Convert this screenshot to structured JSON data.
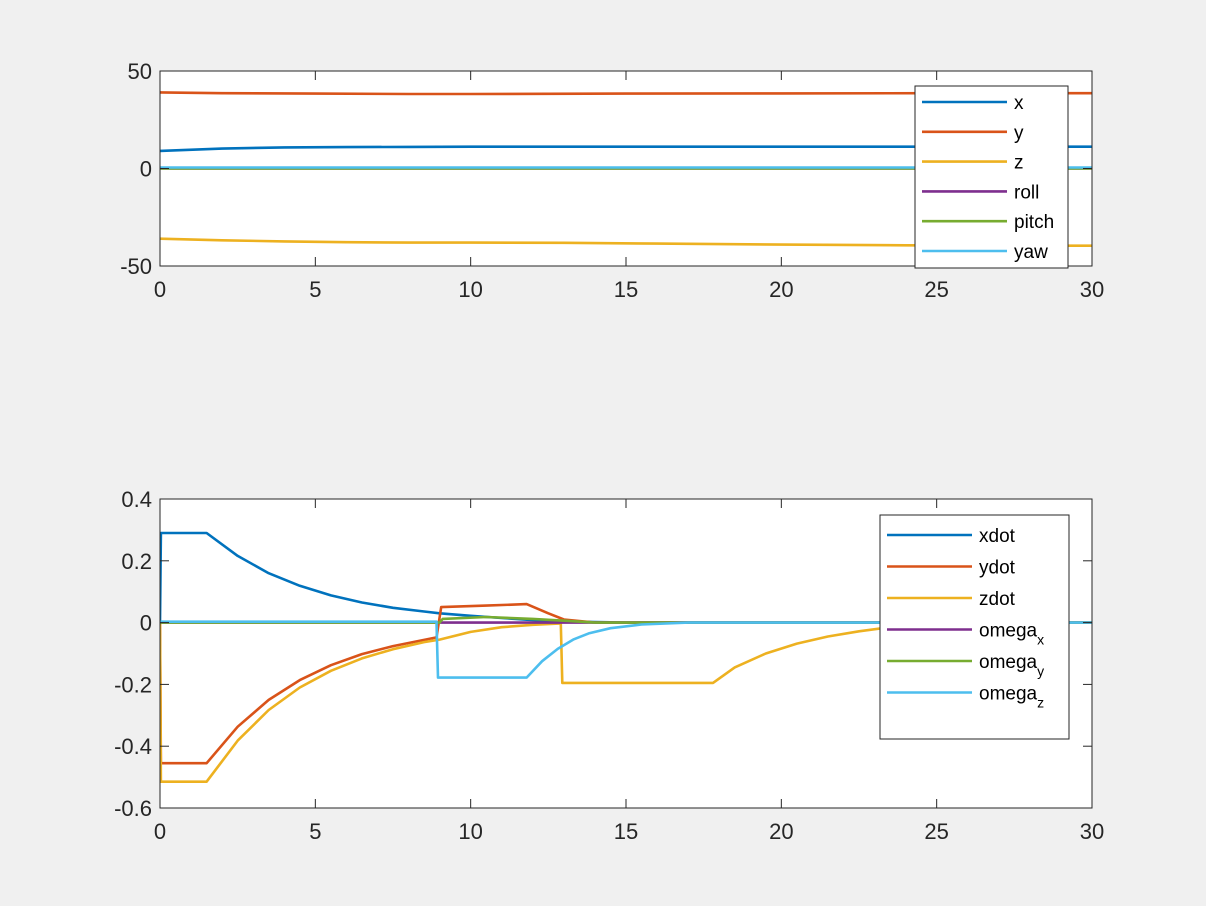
{
  "chart_data": [
    {
      "type": "line",
      "xlim": [
        0,
        30
      ],
      "ylim": [
        -50,
        50
      ],
      "xticks": [
        "0",
        "5",
        "10",
        "15",
        "20",
        "25",
        "30"
      ],
      "yticks": [
        "50",
        "0",
        "-50"
      ],
      "grid": false,
      "legend_position": "top-right",
      "series": [
        {
          "name": "x",
          "color": "#0072bd",
          "x": [
            0,
            2,
            4,
            6,
            8,
            10,
            15,
            20,
            25,
            30
          ],
          "y": [
            9,
            10.2,
            10.8,
            11,
            11.1,
            11.2,
            11.2,
            11.2,
            11.2,
            11.2
          ]
        },
        {
          "name": "y",
          "color": "#d95319",
          "x": [
            0,
            2,
            5,
            8,
            10,
            15,
            20,
            25,
            30
          ],
          "y": [
            39,
            38.6,
            38.4,
            38.2,
            38.2,
            38.4,
            38.5,
            38.6,
            38.6
          ]
        },
        {
          "name": "z",
          "color": "#edb120",
          "x": [
            0,
            2,
            4,
            6,
            8,
            10,
            13,
            16,
            20,
            24,
            27,
            30
          ],
          "y": [
            -36,
            -36.8,
            -37.4,
            -37.8,
            -38,
            -38,
            -38.1,
            -38.5,
            -39,
            -39.4,
            -39.6,
            -39.6
          ]
        },
        {
          "name": "roll",
          "color": "#7e2f8e",
          "x": [
            0,
            30
          ],
          "y": [
            0,
            0
          ]
        },
        {
          "name": "pitch",
          "color": "#77ac30",
          "x": [
            0,
            30
          ],
          "y": [
            0,
            0
          ]
        },
        {
          "name": "yaw",
          "color": "#4dbeee",
          "x": [
            0,
            30
          ],
          "y": [
            0.5,
            0.5
          ]
        }
      ]
    },
    {
      "type": "line",
      "xlim": [
        0,
        30
      ],
      "ylim": [
        -0.6,
        0.4
      ],
      "xticks": [
        "0",
        "5",
        "10",
        "15",
        "20",
        "25",
        "30"
      ],
      "yticks": [
        "0.4",
        "0.2",
        "0",
        "-0.2",
        "-0.4",
        "-0.6"
      ],
      "grid": false,
      "legend_position": "top-right",
      "series": [
        {
          "name": "xdot",
          "subscript": "",
          "color": "#0072bd",
          "x": [
            0,
            0.03,
            1.5,
            2.5,
            3.5,
            4.5,
            5.5,
            6.5,
            7.5,
            8.5,
            9,
            10,
            11,
            12,
            13,
            14,
            15,
            30
          ],
          "y": [
            0,
            0.29,
            0.29,
            0.216,
            0.16,
            0.119,
            0.088,
            0.065,
            0.048,
            0.036,
            0.03,
            0.022,
            0.015,
            0.008,
            0.004,
            0.002,
            0,
            0
          ]
        },
        {
          "name": "ydot",
          "subscript": "",
          "color": "#d95319",
          "x": [
            0,
            0.03,
            1.5,
            2.5,
            3.5,
            4.5,
            5.5,
            6.5,
            7.5,
            8.5,
            8.9,
            9.05,
            10.5,
            11.8,
            12.5,
            13,
            14,
            30
          ],
          "y": [
            0,
            -0.455,
            -0.455,
            -0.337,
            -0.25,
            -0.186,
            -0.138,
            -0.102,
            -0.076,
            -0.056,
            -0.048,
            0.05,
            0.055,
            0.06,
            0.03,
            0.01,
            0,
            0
          ]
        },
        {
          "name": "zdot",
          "subscript": "",
          "color": "#edb120",
          "x": [
            0,
            0.03,
            1.5,
            2.5,
            3.5,
            4.5,
            5.5,
            6.5,
            7.5,
            8.5,
            9,
            10,
            11,
            12,
            12.9,
            12.95,
            17.8,
            18.5,
            19.5,
            20.5,
            21.5,
            22.5,
            23.5,
            25,
            30
          ],
          "y": [
            0,
            -0.515,
            -0.515,
            -0.382,
            -0.283,
            -0.21,
            -0.156,
            -0.116,
            -0.086,
            -0.063,
            -0.055,
            -0.03,
            -0.015,
            -0.007,
            -0.003,
            -0.195,
            -0.195,
            -0.145,
            -0.1,
            -0.068,
            -0.045,
            -0.028,
            -0.015,
            0,
            0
          ]
        },
        {
          "name": "omega",
          "subscript": "x",
          "color": "#7e2f8e",
          "x": [
            0,
            30
          ],
          "y": [
            0,
            0
          ]
        },
        {
          "name": "omega",
          "subscript": "y",
          "color": "#77ac30",
          "x": [
            0,
            9,
            9.1,
            10.5,
            12,
            13,
            14,
            30
          ],
          "y": [
            0,
            0,
            0.012,
            0.018,
            0.012,
            0.006,
            0,
            0
          ]
        },
        {
          "name": "omega",
          "subscript": "z",
          "color": "#4dbeee",
          "x": [
            0,
            8.9,
            8.95,
            11.8,
            12.3,
            12.8,
            13.3,
            13.8,
            14.5,
            15.5,
            17,
            30
          ],
          "y": [
            0.003,
            0.003,
            -0.178,
            -0.178,
            -0.125,
            -0.085,
            -0.055,
            -0.035,
            -0.018,
            -0.006,
            0,
            0
          ]
        }
      ]
    }
  ]
}
